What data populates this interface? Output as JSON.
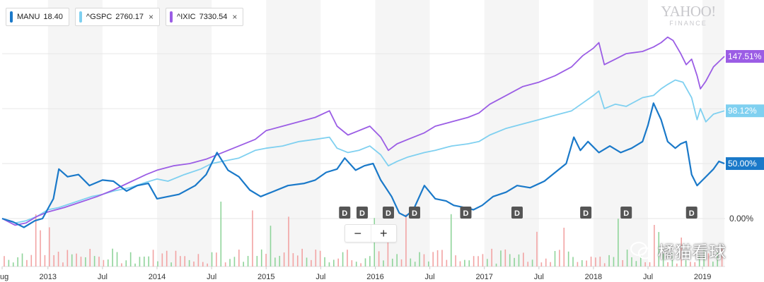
{
  "legend": [
    {
      "symbol": "MANU",
      "value": "18.40",
      "color": "#1a79c9",
      "closable": false
    },
    {
      "symbol": "^GSPC",
      "value": "2760.17",
      "color": "#7fd0f0",
      "closable": true
    },
    {
      "symbol": "^IXIC",
      "value": "7330.54",
      "color": "#9b5de5",
      "closable": true
    }
  ],
  "close_glyph": "×",
  "watermark": {
    "brand": "YAHOO!",
    "sub": "FINANCE"
  },
  "zoom": {
    "minus": "−",
    "plus": "+"
  },
  "overlay_text": "橘猫看球",
  "dividend_marker_label": "D",
  "chart_data": {
    "type": "line",
    "y_unit": "% change",
    "y_ticks": [
      "0.00%"
    ],
    "x_tick_labels": [
      "ug",
      "2013",
      "Jul",
      "2014",
      "Jul",
      "2015",
      "Jul",
      "2016",
      "Jul",
      "2017",
      "Jul",
      "2018",
      "Jul",
      "2019"
    ],
    "x_tick_years": [
      2012.58,
      2013.0,
      2013.5,
      2014.0,
      2014.5,
      2015.0,
      2015.5,
      2016.0,
      2016.5,
      2017.0,
      2017.5,
      2018.0,
      2018.5,
      2019.0
    ],
    "x_range": [
      2012.58,
      2019.2
    ],
    "y_range": [
      -20,
      165
    ],
    "grid": true,
    "series": [
      {
        "name": "MANU",
        "color": "#1a79c9",
        "end_label": "50.00%",
        "x": [
          2012.58,
          2012.68,
          2012.78,
          2012.88,
          2012.95,
          2013.05,
          2013.1,
          2013.18,
          2013.28,
          2013.38,
          2013.5,
          2013.6,
          2013.72,
          2013.82,
          2013.92,
          2014.0,
          2014.1,
          2014.2,
          2014.35,
          2014.45,
          2014.55,
          2014.65,
          2014.75,
          2014.85,
          2014.95,
          2015.05,
          2015.2,
          2015.35,
          2015.45,
          2015.55,
          2015.65,
          2015.72,
          2015.82,
          2015.9,
          2015.98,
          2016.05,
          2016.15,
          2016.22,
          2016.28,
          2016.35,
          2016.45,
          2016.55,
          2016.65,
          2016.72,
          2016.82,
          2016.9,
          2016.98,
          2017.08,
          2017.2,
          2017.3,
          2017.42,
          2017.55,
          2017.65,
          2017.75,
          2017.82,
          2017.88,
          2017.95,
          2018.05,
          2018.15,
          2018.25,
          2018.35,
          2018.45,
          2018.5,
          2018.55,
          2018.62,
          2018.68,
          2018.75,
          2018.8,
          2018.85,
          2018.9,
          2018.95,
          2019.0,
          2019.05,
          2019.1,
          2019.15,
          2019.2
        ],
        "y": [
          0,
          -3,
          -8,
          -2,
          0,
          18,
          45,
          38,
          40,
          30,
          35,
          34,
          25,
          30,
          32,
          18,
          20,
          22,
          30,
          40,
          60,
          44,
          38,
          26,
          20,
          24,
          30,
          32,
          35,
          42,
          45,
          55,
          44,
          48,
          50,
          35,
          20,
          5,
          2,
          8,
          30,
          18,
          16,
          12,
          10,
          8,
          12,
          20,
          24,
          30,
          28,
          34,
          42,
          50,
          74,
          62,
          70,
          60,
          66,
          60,
          64,
          70,
          85,
          105,
          90,
          70,
          64,
          68,
          70,
          40,
          30,
          35,
          40,
          45,
          52,
          50
        ]
      },
      {
        "name": "^GSPC",
        "color": "#7fd0f0",
        "end_label": "98.12%",
        "x": [
          2012.58,
          2012.7,
          2012.8,
          2012.9,
          2013.0,
          2013.1,
          2013.25,
          2013.4,
          2013.5,
          2013.6,
          2013.75,
          2013.9,
          2014.0,
          2014.1,
          2014.25,
          2014.4,
          2014.5,
          2014.6,
          2014.75,
          2014.9,
          2015.0,
          2015.15,
          2015.3,
          2015.45,
          2015.58,
          2015.65,
          2015.75,
          2015.85,
          2015.95,
          2016.05,
          2016.12,
          2016.2,
          2016.3,
          2016.45,
          2016.55,
          2016.7,
          2016.85,
          2016.95,
          2017.05,
          2017.2,
          2017.35,
          2017.5,
          2017.65,
          2017.8,
          2017.9,
          2018.0,
          2018.05,
          2018.1,
          2018.2,
          2018.3,
          2018.45,
          2018.55,
          2018.62,
          2018.68,
          2018.75,
          2018.82,
          2018.9,
          2018.95,
          2018.98,
          2019.03,
          2019.1,
          2019.2
        ],
        "y": [
          0,
          -4,
          -2,
          2,
          8,
          10,
          15,
          20,
          22,
          25,
          28,
          33,
          36,
          34,
          40,
          45,
          50,
          52,
          55,
          62,
          64,
          66,
          70,
          72,
          74,
          64,
          60,
          62,
          66,
          58,
          48,
          52,
          56,
          60,
          62,
          66,
          68,
          70,
          76,
          82,
          86,
          90,
          94,
          98,
          105,
          112,
          116,
          100,
          104,
          102,
          110,
          112,
          118,
          122,
          126,
          124,
          110,
          90,
          100,
          88,
          95,
          98
        ]
      },
      {
        "name": "^IXIC",
        "color": "#9b5de5",
        "end_label": "147.51%",
        "x": [
          2012.58,
          2012.7,
          2012.8,
          2012.9,
          2013.0,
          2013.15,
          2013.3,
          2013.45,
          2013.6,
          2013.75,
          2013.9,
          2014.0,
          2014.15,
          2014.3,
          2014.45,
          2014.6,
          2014.75,
          2014.9,
          2015.0,
          2015.15,
          2015.3,
          2015.45,
          2015.58,
          2015.65,
          2015.75,
          2015.85,
          2015.95,
          2016.05,
          2016.12,
          2016.2,
          2016.3,
          2016.45,
          2016.55,
          2016.7,
          2016.85,
          2016.95,
          2017.05,
          2017.2,
          2017.35,
          2017.5,
          2017.65,
          2017.8,
          2017.9,
          2018.0,
          2018.05,
          2018.1,
          2018.2,
          2018.3,
          2018.45,
          2018.55,
          2018.62,
          2018.68,
          2018.73,
          2018.8,
          2018.85,
          2018.9,
          2018.95,
          2018.98,
          2019.03,
          2019.1,
          2019.2
        ],
        "y": [
          0,
          -6,
          -4,
          2,
          6,
          10,
          15,
          20,
          26,
          33,
          40,
          44,
          48,
          50,
          54,
          60,
          66,
          72,
          80,
          84,
          88,
          92,
          98,
          84,
          76,
          80,
          84,
          74,
          62,
          68,
          72,
          78,
          84,
          88,
          92,
          96,
          104,
          112,
          120,
          124,
          130,
          138,
          148,
          155,
          160,
          140,
          145,
          150,
          152,
          156,
          160,
          165,
          162,
          150,
          140,
          145,
          130,
          118,
          125,
          138,
          147.5
        ]
      }
    ],
    "dividend_markers_x": [
      2015.72,
      2015.88,
      2016.12,
      2016.36,
      2016.83,
      2017.3,
      2017.93,
      2018.3,
      2018.9
    ],
    "volume": {
      "count": 160,
      "color_up": "#8fd49a",
      "color_down": "#f2a3a3"
    }
  }
}
